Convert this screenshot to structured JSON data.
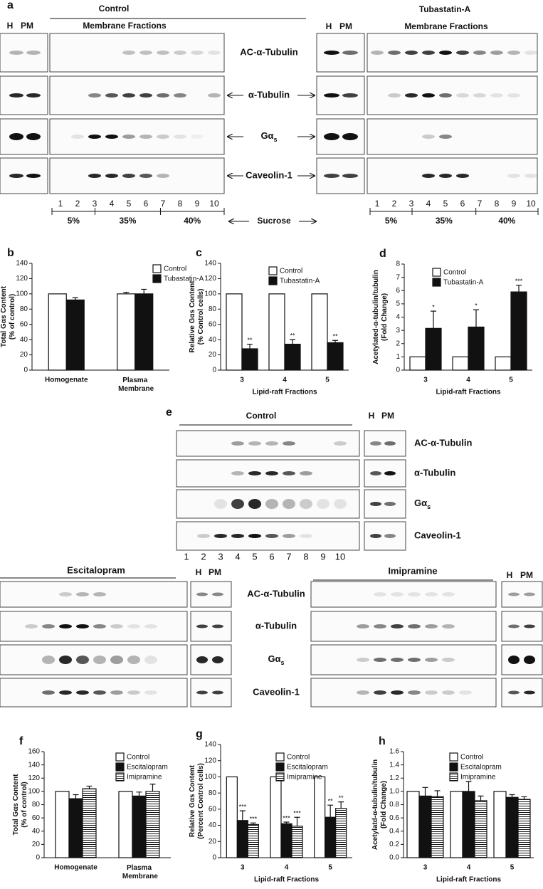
{
  "panel_a": {
    "letter": "a",
    "left_title": "Control",
    "right_title": "Tubastatin-A",
    "h": "H",
    "pm": "PM",
    "fractions_label": "Membrane Fractions",
    "proteins": [
      "AC-α-Tubulin",
      "α-Tubulin",
      {
        "main": "Gα",
        "sub": "s"
      },
      "Caveolin-1"
    ],
    "fractions": [
      1,
      2,
      3,
      4,
      5,
      6,
      7,
      8,
      9,
      10
    ],
    "sucrose": [
      "5%",
      "35%",
      "40%"
    ],
    "sucrose_label": "Sucrose"
  },
  "panel_e": {
    "letter": "e",
    "title": "Control",
    "h": "H",
    "pm": "PM",
    "proteins": [
      "AC-α-Tubulin",
      "α-Tubulin",
      {
        "main": "Gα",
        "sub": "s"
      },
      "Caveolin-1"
    ],
    "fractions": [
      1,
      2,
      3,
      4,
      5,
      6,
      7,
      8,
      9,
      10
    ]
  },
  "panel_drugs": {
    "left_title": "Escitalopram",
    "right_title": "Imipramine",
    "h": "H",
    "pm": "PM",
    "proteins": [
      "AC-α-Tubulin",
      "α-Tubulin",
      {
        "main": "Gα",
        "sub": "s"
      },
      "Caveolin-1"
    ]
  },
  "chart_data": [
    {
      "type": "bar",
      "letter": "b",
      "y_label": [
        "Total Gαs Content",
        "(% of control)"
      ],
      "categories": [
        "Homogenate",
        "Plasma Membrane"
      ],
      "series": [
        {
          "name": "Control",
          "color": "#ffffff",
          "values": [
            100,
            100
          ],
          "errors": [
            0,
            2
          ]
        },
        {
          "name": "Tubastatin-A",
          "color": "#111111",
          "values": [
            92,
            100
          ],
          "errors": [
            3,
            6
          ]
        }
      ],
      "ylim": [
        0,
        140
      ],
      "yticks": [
        0,
        20,
        40,
        60,
        80,
        100,
        120,
        140
      ]
    },
    {
      "type": "bar",
      "letter": "c",
      "y_label": [
        "Relative Gαs Content",
        "(% Control cells)"
      ],
      "x_label": "Lipid-raft Fractions",
      "categories": [
        "3",
        "4",
        "5"
      ],
      "series": [
        {
          "name": "Control",
          "color": "#ffffff",
          "values": [
            100,
            100,
            100
          ]
        },
        {
          "name": "Tubastatin-A",
          "color": "#111111",
          "values": [
            28,
            34,
            36
          ],
          "errors": [
            6,
            6,
            3
          ],
          "annotations": [
            "**",
            "**",
            "**"
          ]
        }
      ],
      "ylim": [
        0,
        140
      ],
      "yticks": [
        0,
        20,
        40,
        60,
        80,
        100,
        120,
        140
      ]
    },
    {
      "type": "bar",
      "letter": "d",
      "y_label": [
        "Acetylated-α-tubulin/tubulin",
        "(Fold Change)"
      ],
      "x_label": "Lipid-raft Fractions",
      "categories": [
        "3",
        "4",
        "5"
      ],
      "series": [
        {
          "name": "Control",
          "color": "#ffffff",
          "values": [
            1,
            1,
            1
          ]
        },
        {
          "name": "Tubastatin-A",
          "color": "#111111",
          "values": [
            3.15,
            3.25,
            5.9
          ],
          "errors": [
            1.3,
            1.3,
            0.5
          ],
          "annotations": [
            "*",
            "*",
            "***"
          ]
        }
      ],
      "ylim": [
        0,
        8
      ],
      "yticks": [
        0,
        1,
        2,
        3,
        4,
        5,
        6,
        7,
        8
      ]
    },
    {
      "type": "bar",
      "letter": "f",
      "y_label": [
        "Total Gαs Content",
        "(% of control)"
      ],
      "categories": [
        "Homogenate",
        "Plasma Membrane"
      ],
      "series": [
        {
          "name": "Control",
          "color": "#ffffff",
          "values": [
            100,
            100
          ]
        },
        {
          "name": "Escitalopram",
          "color": "#111111",
          "values": [
            89,
            93
          ],
          "errors": [
            6,
            6
          ]
        },
        {
          "name": "Imipramine",
          "color": "#ffffff",
          "pattern": "horizontal-lines",
          "values": [
            104,
            100
          ],
          "errors": [
            4,
            11
          ]
        }
      ],
      "ylim": [
        0,
        160
      ],
      "yticks": [
        0,
        20,
        40,
        60,
        80,
        100,
        120,
        140,
        160
      ]
    },
    {
      "type": "bar",
      "letter": "g",
      "y_label": [
        "Relative Gαs Content",
        "(Percent Control cells)"
      ],
      "x_label": "Lipid-raft Fractions",
      "categories": [
        "3",
        "4",
        "5"
      ],
      "series": [
        {
          "name": "Control",
          "color": "#ffffff",
          "values": [
            100,
            100,
            100
          ]
        },
        {
          "name": "Escitalopram",
          "color": "#111111",
          "values": [
            46,
            42,
            50
          ],
          "errors": [
            12,
            2,
            15
          ],
          "annotations": [
            "***",
            "***",
            "**"
          ]
        },
        {
          "name": "Imipramine",
          "color": "#ffffff",
          "pattern": "horizontal-lines",
          "values": [
            41,
            39,
            61
          ],
          "errors": [
            2,
            11,
            8
          ],
          "annotations": [
            "***",
            "***",
            "**"
          ]
        }
      ],
      "ylim": [
        0,
        140
      ],
      "yticks": [
        0,
        20,
        40,
        60,
        80,
        100,
        120,
        140
      ]
    },
    {
      "type": "bar",
      "letter": "h",
      "y_label": [
        "Acetylatd-α-tubulin/tubulin",
        "(Fold Change)"
      ],
      "x_label": "Lipid-raft Fractions",
      "categories": [
        "3",
        "4",
        "5"
      ],
      "series": [
        {
          "name": "Control",
          "color": "#ffffff",
          "values": [
            1,
            1,
            1
          ]
        },
        {
          "name": "Escitalopram",
          "color": "#111111",
          "values": [
            0.93,
            1.0,
            0.91
          ],
          "errors": [
            0.13,
            0.15,
            0.04
          ]
        },
        {
          "name": "Imipramine",
          "color": "#ffffff",
          "pattern": "horizontal-lines",
          "values": [
            0.92,
            0.86,
            0.88
          ],
          "errors": [
            0.09,
            0.07,
            0.04
          ]
        }
      ],
      "ylim": [
        0,
        1.6
      ],
      "yticks": [
        {
          "value": 0,
          "label": "0.0"
        },
        {
          "value": 0.2,
          "label": "0.2"
        },
        {
          "value": 0.4,
          "label": "0.4"
        },
        {
          "value": 0.6,
          "label": "0.6"
        },
        {
          "value": 0.8,
          "label": "0.8"
        },
        {
          "value": 1,
          "label": "1.0"
        },
        {
          "value": 1.2,
          "label": "1.2"
        },
        {
          "value": 1.4,
          "label": "1.4"
        },
        {
          "value": 1.6,
          "label": "1.6"
        }
      ]
    }
  ]
}
